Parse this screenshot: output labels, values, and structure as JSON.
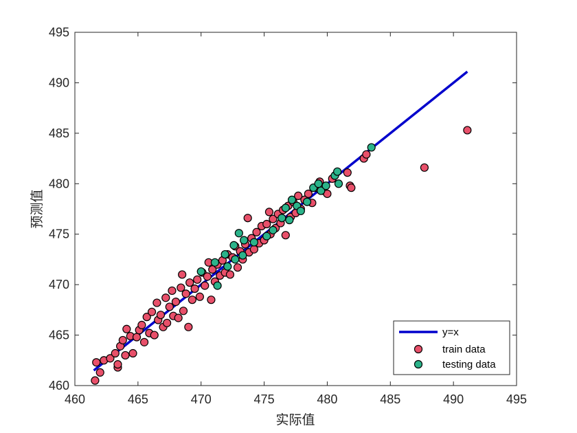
{
  "chart_data": {
    "type": "scatter",
    "title": "",
    "xlabel": "实际值",
    "ylabel": "预测值",
    "xlim": [
      460,
      495
    ],
    "ylim": [
      460,
      495
    ],
    "xticks": [
      460,
      465,
      470,
      475,
      480,
      485,
      490,
      495
    ],
    "yticks": [
      460,
      465,
      470,
      475,
      480,
      485,
      490,
      495
    ],
    "grid": false,
    "legend_position": "bottom-right",
    "series": [
      {
        "name": "y=x",
        "kind": "line",
        "color": "#0000cc",
        "x": [
          461.5,
          491.1
        ],
        "y": [
          461.5,
          491.1
        ]
      },
      {
        "name": "train data",
        "kind": "scatter",
        "color": "#e8506a",
        "points": [
          [
            461.6,
            460.5
          ],
          [
            461.7,
            462.3
          ],
          [
            462.0,
            461.3
          ],
          [
            462.3,
            462.5
          ],
          [
            462.8,
            462.7
          ],
          [
            463.2,
            463.2
          ],
          [
            463.4,
            461.8
          ],
          [
            463.4,
            462.1
          ],
          [
            463.6,
            463.9
          ],
          [
            463.8,
            464.5
          ],
          [
            464.0,
            463.0
          ],
          [
            464.1,
            465.6
          ],
          [
            464.4,
            464.9
          ],
          [
            464.6,
            463.2
          ],
          [
            464.9,
            464.8
          ],
          [
            465.1,
            465.5
          ],
          [
            465.3,
            466.0
          ],
          [
            465.5,
            464.3
          ],
          [
            465.7,
            466.8
          ],
          [
            465.9,
            465.2
          ],
          [
            466.1,
            467.3
          ],
          [
            466.3,
            465.0
          ],
          [
            466.5,
            468.2
          ],
          [
            466.6,
            466.5
          ],
          [
            466.8,
            467.0
          ],
          [
            467.0,
            465.8
          ],
          [
            467.2,
            468.7
          ],
          [
            467.3,
            466.2
          ],
          [
            467.5,
            467.8
          ],
          [
            467.7,
            469.4
          ],
          [
            467.8,
            466.9
          ],
          [
            468.0,
            468.3
          ],
          [
            468.2,
            466.7
          ],
          [
            468.4,
            469.7
          ],
          [
            468.5,
            471.0
          ],
          [
            468.6,
            467.4
          ],
          [
            468.8,
            469.1
          ],
          [
            469.0,
            465.8
          ],
          [
            469.1,
            470.2
          ],
          [
            469.3,
            468.5
          ],
          [
            469.5,
            469.6
          ],
          [
            469.7,
            470.5
          ],
          [
            469.9,
            468.8
          ],
          [
            470.1,
            471.2
          ],
          [
            470.3,
            469.9
          ],
          [
            470.5,
            470.8
          ],
          [
            470.6,
            472.2
          ],
          [
            470.8,
            468.5
          ],
          [
            470.9,
            471.5
          ],
          [
            471.1,
            470.3
          ],
          [
            471.3,
            472.0
          ],
          [
            471.5,
            470.9
          ],
          [
            471.7,
            472.4
          ],
          [
            471.9,
            471.2
          ],
          [
            472.1,
            473.0
          ],
          [
            472.3,
            471.0
          ],
          [
            472.5,
            472.7
          ],
          [
            472.7,
            473.8
          ],
          [
            472.9,
            471.7
          ],
          [
            473.1,
            473.3
          ],
          [
            473.3,
            472.5
          ],
          [
            473.5,
            474.0
          ],
          [
            473.7,
            476.6
          ],
          [
            473.8,
            473.2
          ],
          [
            474.0,
            474.6
          ],
          [
            474.2,
            473.5
          ],
          [
            474.4,
            475.2
          ],
          [
            474.6,
            474.1
          ],
          [
            474.8,
            475.8
          ],
          [
            475.0,
            474.4
          ],
          [
            475.2,
            476.0
          ],
          [
            475.4,
            477.2
          ],
          [
            475.5,
            475.0
          ],
          [
            475.7,
            476.5
          ],
          [
            475.9,
            475.6
          ],
          [
            476.1,
            477.0
          ],
          [
            476.3,
            476.1
          ],
          [
            476.5,
            477.4
          ],
          [
            476.7,
            474.9
          ],
          [
            476.9,
            477.8
          ],
          [
            477.1,
            476.7
          ],
          [
            477.3,
            478.2
          ],
          [
            477.5,
            477.1
          ],
          [
            477.7,
            478.8
          ],
          [
            477.9,
            477.5
          ],
          [
            478.2,
            478.4
          ],
          [
            478.5,
            479.0
          ],
          [
            478.8,
            478.1
          ],
          [
            479.1,
            479.6
          ],
          [
            479.4,
            480.2
          ],
          [
            479.7,
            479.3
          ],
          [
            480.0,
            479.0
          ],
          [
            480.4,
            480.5
          ],
          [
            481.6,
            481.1
          ],
          [
            481.8,
            479.8
          ],
          [
            481.9,
            479.6
          ],
          [
            482.9,
            482.5
          ],
          [
            483.1,
            482.9
          ],
          [
            487.7,
            481.6
          ],
          [
            491.1,
            485.3
          ]
        ]
      },
      {
        "name": "testing data",
        "kind": "scatter",
        "color": "#2bb38a",
        "points": [
          [
            470.0,
            471.3
          ],
          [
            471.1,
            472.2
          ],
          [
            471.3,
            469.9
          ],
          [
            471.9,
            473.0
          ],
          [
            472.1,
            471.8
          ],
          [
            472.6,
            473.9
          ],
          [
            472.7,
            472.5
          ],
          [
            473.0,
            475.1
          ],
          [
            473.3,
            472.9
          ],
          [
            473.4,
            474.4
          ],
          [
            474.2,
            474.2
          ],
          [
            475.2,
            474.8
          ],
          [
            475.7,
            475.4
          ],
          [
            476.4,
            476.6
          ],
          [
            476.7,
            477.6
          ],
          [
            477.0,
            476.4
          ],
          [
            477.2,
            478.4
          ],
          [
            477.6,
            477.8
          ],
          [
            477.9,
            477.3
          ],
          [
            478.4,
            478.2
          ],
          [
            478.9,
            479.6
          ],
          [
            479.3,
            480.0
          ],
          [
            479.5,
            479.3
          ],
          [
            479.9,
            479.8
          ],
          [
            480.6,
            480.8
          ],
          [
            480.8,
            481.2
          ],
          [
            480.9,
            480.0
          ],
          [
            483.5,
            483.6
          ]
        ]
      }
    ]
  }
}
